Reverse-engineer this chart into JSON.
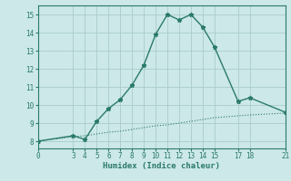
{
  "title": "",
  "xlabel": "Humidex (Indice chaleur)",
  "ylabel": "",
  "bg_color": "#cce8e8",
  "grid_color": "#aacccc",
  "line_color": "#2a7a6a",
  "line1_x": [
    0,
    3,
    4,
    5,
    6,
    7,
    8,
    9,
    10,
    11,
    12,
    13,
    14,
    15,
    17,
    18,
    21
  ],
  "line1_y": [
    8.0,
    8.3,
    8.1,
    9.1,
    9.8,
    10.3,
    11.1,
    12.2,
    13.9,
    15.0,
    14.7,
    15.0,
    14.3,
    13.2,
    10.2,
    10.4,
    9.6
  ],
  "line2_x": [
    0,
    3,
    4,
    5,
    6,
    7,
    8,
    9,
    10,
    11,
    12,
    13,
    14,
    15,
    17,
    18,
    21
  ],
  "line2_y": [
    8.0,
    8.25,
    8.3,
    8.4,
    8.5,
    8.55,
    8.65,
    8.75,
    8.85,
    8.9,
    9.0,
    9.1,
    9.2,
    9.3,
    9.4,
    9.45,
    9.55
  ],
  "xticks": [
    0,
    3,
    4,
    5,
    6,
    7,
    8,
    9,
    10,
    11,
    12,
    13,
    14,
    15,
    17,
    18,
    21
  ],
  "yticks": [
    8,
    9,
    10,
    11,
    12,
    13,
    14,
    15
  ],
  "xlim": [
    0,
    21
  ],
  "ylim": [
    7.6,
    15.5
  ]
}
